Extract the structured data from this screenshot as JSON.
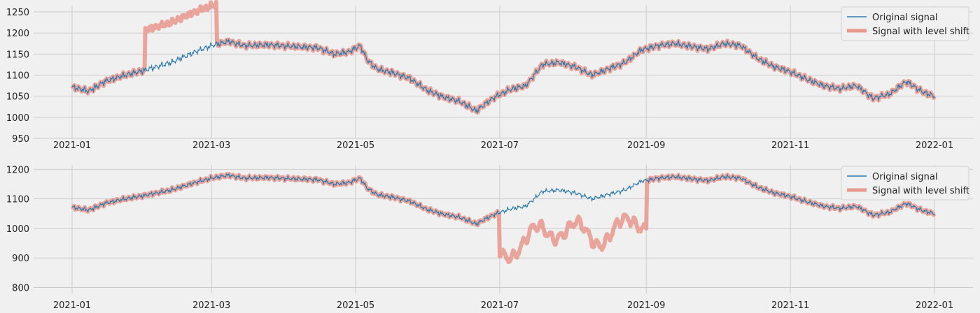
{
  "chart_data": [
    {
      "type": "line",
      "title": "",
      "xlabel": "",
      "ylabel": "",
      "x_range": [
        "2021-01-01",
        "2022-01-01"
      ],
      "ylim": [
        950,
        1265
      ],
      "x_tick_labels": [
        "2021-01",
        "2021-03",
        "2021-05",
        "2021-07",
        "2021-09",
        "2021-11",
        "2022-01"
      ],
      "y_ticks": [
        950,
        1000,
        1050,
        1100,
        1150,
        1200,
        1250
      ],
      "grid": true,
      "legend_position": "top-right",
      "series": [
        {
          "name": "Original signal",
          "color": "#2a7ab0",
          "points": [
            [
              "2021-01-01",
              1072
            ],
            [
              "2021-01-08",
              1062
            ],
            [
              "2021-01-15",
              1085
            ],
            [
              "2021-01-22",
              1098
            ],
            [
              "2021-02-01",
              1112
            ],
            [
              "2021-02-12",
              1130
            ],
            [
              "2021-02-22",
              1155
            ],
            [
              "2021-03-01",
              1170
            ],
            [
              "2021-03-08",
              1180
            ],
            [
              "2021-03-15",
              1170
            ],
            [
              "2021-03-25",
              1172
            ],
            [
              "2021-04-05",
              1168
            ],
            [
              "2021-04-15",
              1165
            ],
            [
              "2021-04-22",
              1150
            ],
            [
              "2021-04-28",
              1155
            ],
            [
              "2021-05-03",
              1170
            ],
            [
              "2021-05-06",
              1135
            ],
            [
              "2021-05-10",
              1115
            ],
            [
              "2021-05-17",
              1105
            ],
            [
              "2021-05-24",
              1092
            ],
            [
              "2021-05-31",
              1065
            ],
            [
              "2021-06-07",
              1048
            ],
            [
              "2021-06-14",
              1038
            ],
            [
              "2021-06-21",
              1015
            ],
            [
              "2021-06-28",
              1045
            ],
            [
              "2021-07-05",
              1065
            ],
            [
              "2021-07-12",
              1075
            ],
            [
              "2021-07-19",
              1125
            ],
            [
              "2021-07-26",
              1130
            ],
            [
              "2021-08-02",
              1120
            ],
            [
              "2021-08-09",
              1100
            ],
            [
              "2021-08-16",
              1115
            ],
            [
              "2021-08-23",
              1130
            ],
            [
              "2021-08-30",
              1160
            ],
            [
              "2021-09-06",
              1170
            ],
            [
              "2021-09-13",
              1175
            ],
            [
              "2021-09-20",
              1168
            ],
            [
              "2021-09-27",
              1162
            ],
            [
              "2021-10-04",
              1175
            ],
            [
              "2021-10-11",
              1170
            ],
            [
              "2021-10-18",
              1140
            ],
            [
              "2021-10-25",
              1120
            ],
            [
              "2021-11-01",
              1108
            ],
            [
              "2021-11-08",
              1090
            ],
            [
              "2021-11-15",
              1075
            ],
            [
              "2021-11-22",
              1068
            ],
            [
              "2021-11-29",
              1075
            ],
            [
              "2021-12-06",
              1045
            ],
            [
              "2021-12-13",
              1055
            ],
            [
              "2021-12-20",
              1085
            ],
            [
              "2021-12-27",
              1060
            ],
            [
              "2022-01-01",
              1050
            ]
          ]
        },
        {
          "name": "Signal with level shift",
          "color": "#e8988c",
          "shift": {
            "start": "2021-02-01",
            "end": "2021-03-03",
            "offset": 95
          }
        }
      ]
    },
    {
      "type": "line",
      "title": "",
      "xlabel": "",
      "ylabel": "",
      "x_range": [
        "2021-01-01",
        "2022-01-01"
      ],
      "ylim": [
        780,
        1215
      ],
      "x_tick_labels": [
        "2021-01",
        "2021-03",
        "2021-05",
        "2021-07",
        "2021-09",
        "2021-11",
        "2022-01"
      ],
      "y_ticks": [
        800,
        900,
        1000,
        1100,
        1200
      ],
      "grid": true,
      "legend_position": "top-right",
      "series": [
        {
          "name": "Original signal",
          "color": "#2a7ab0",
          "same_as_chart": 0
        },
        {
          "name": "Signal with level shift",
          "color": "#e8988c",
          "shift": {
            "start": "2021-07-01",
            "end": "2021-09-01",
            "offset": -130
          }
        }
      ]
    }
  ]
}
